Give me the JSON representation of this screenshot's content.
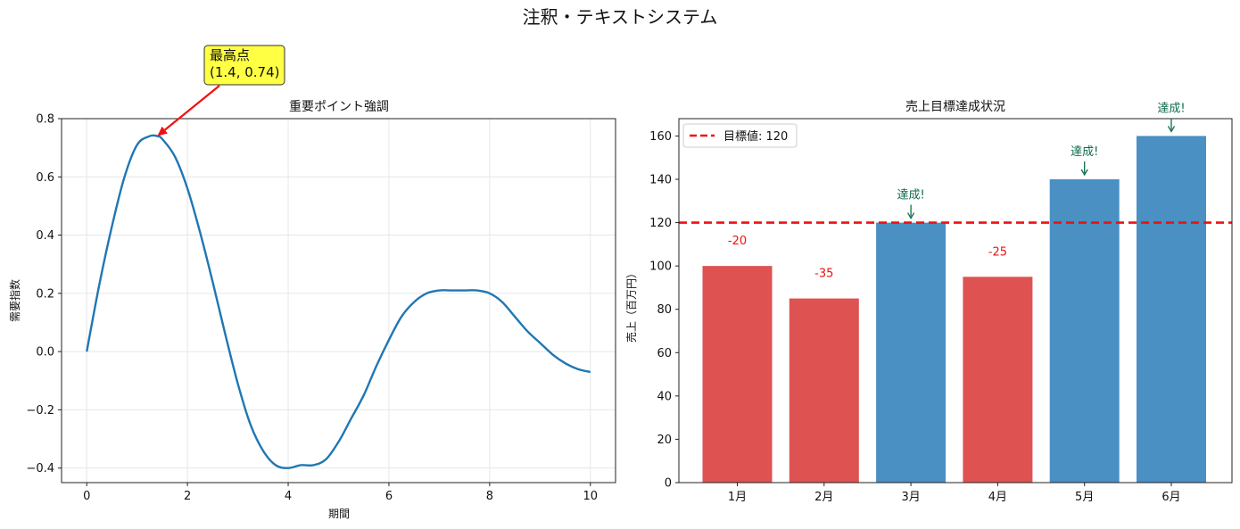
{
  "figure_title": "注釈・テキストシステム",
  "chart_data": [
    {
      "type": "line",
      "title": "重要ポイント強調",
      "xlabel": "期間",
      "ylabel": "需要指数",
      "xlim": [
        -0.5,
        10.5
      ],
      "ylim": [
        -0.45,
        0.8
      ],
      "xticks": [
        0,
        2,
        4,
        6,
        8,
        10
      ],
      "xtick_labels": [
        "0",
        "2",
        "4",
        "6",
        "8",
        "10"
      ],
      "yticks": [
        -0.4,
        -0.2,
        0.0,
        0.2,
        0.4,
        0.6,
        0.8
      ],
      "ytick_labels": [
        "−0.4",
        "−0.2",
        "0.0",
        "0.2",
        "0.4",
        "0.6",
        "0.8"
      ],
      "grid": true,
      "line_color": "#1f77b4",
      "series": [
        {
          "x": [
            0,
            0.25,
            0.5,
            0.75,
            1.0,
            1.25,
            1.4,
            1.5,
            1.75,
            2.0,
            2.25,
            2.5,
            2.75,
            3.0,
            3.25,
            3.5,
            3.75,
            4.0,
            4.25,
            4.5,
            4.75,
            5.0,
            5.25,
            5.5,
            5.75,
            6.0,
            6.25,
            6.5,
            6.75,
            7.0,
            7.25,
            7.5,
            7.75,
            8.0,
            8.25,
            8.5,
            8.75,
            9.0,
            9.25,
            9.5,
            9.75,
            10.0
          ],
          "y": [
            0.0,
            0.23,
            0.43,
            0.6,
            0.71,
            0.74,
            0.74,
            0.73,
            0.67,
            0.56,
            0.41,
            0.24,
            0.06,
            -0.11,
            -0.25,
            -0.34,
            -0.39,
            -0.4,
            -0.39,
            -0.39,
            -0.37,
            -0.31,
            -0.23,
            -0.15,
            -0.05,
            0.04,
            0.12,
            0.17,
            0.2,
            0.21,
            0.21,
            0.21,
            0.21,
            0.2,
            0.17,
            0.12,
            0.07,
            0.03,
            -0.01,
            -0.04,
            -0.06,
            -0.07
          ]
        }
      ],
      "annotation": {
        "text_line1": "最高点",
        "text_line2": "(1.4, 0.74)",
        "point": [
          1.4,
          0.74
        ],
        "box_color": "#ffff44",
        "arrow_color": "#ee1111"
      }
    },
    {
      "type": "bar",
      "title": "売上目標達成状況",
      "xlabel": "",
      "ylabel": "売上（百万円）",
      "categories": [
        "1月",
        "2月",
        "3月",
        "4月",
        "5月",
        "6月"
      ],
      "values": [
        100,
        85,
        120,
        95,
        140,
        160
      ],
      "ylim": [
        0,
        168
      ],
      "yticks": [
        0,
        20,
        40,
        60,
        80,
        100,
        120,
        140,
        160
      ],
      "ytick_labels": [
        "0",
        "20",
        "40",
        "60",
        "80",
        "100",
        "120",
        "140",
        "160"
      ],
      "target": 120,
      "legend": {
        "label": "目標値: 120",
        "placement": "top-left"
      },
      "shortfall_labels": [
        "-20",
        "-35",
        "",
        "-25",
        "",
        ""
      ],
      "achieved_labels": [
        "",
        "",
        "達成!",
        "",
        "達成!",
        "達成!"
      ],
      "colors": {
        "above": "#4a90c2",
        "below": "#de5252",
        "target_line": "#ee1111",
        "shortfall_text": "#ee1111",
        "achieved_text": "#0e6b4a"
      }
    }
  ]
}
